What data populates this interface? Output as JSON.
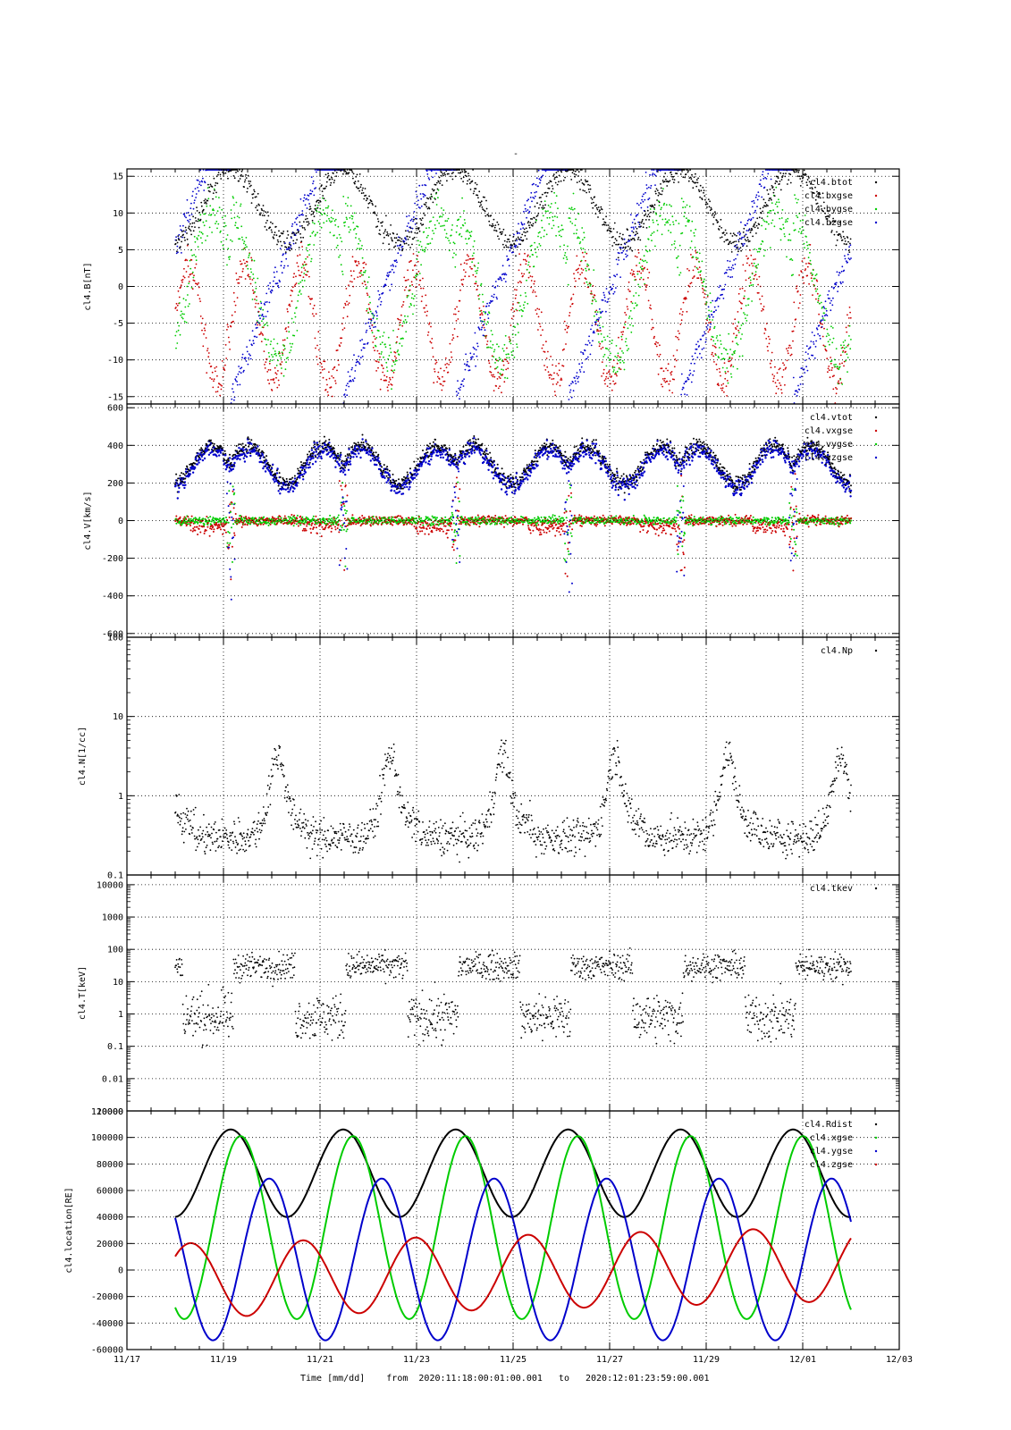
{
  "chart_data": {
    "type": "scatter",
    "title": "-",
    "x_tick_labels": [
      "11/17",
      "11/19",
      "11/21",
      "11/23",
      "11/25",
      "11/27",
      "11/29",
      "12/01",
      "12/03"
    ],
    "x_ticks_days": [
      -1,
      1,
      3,
      5,
      7,
      9,
      11,
      13,
      15
    ],
    "x_range_days": [
      -1,
      15
    ],
    "footer": {
      "xlabel": "Time [mm/dd]",
      "from_label": "from",
      "from": "2020:11:18:00:01:00.001",
      "to_label": "to",
      "to": "2020:12:01:23:59:00.001"
    },
    "colors": {
      "black": "#000000",
      "red": "#cc0000",
      "green": "#00cc00",
      "blue": "#0000cc"
    },
    "panels": [
      {
        "id": "B",
        "ylabel": "cl4.B[nT]",
        "scale": "linear",
        "ylim": [
          -16,
          16
        ],
        "yticks": [
          15,
          10,
          5,
          0,
          -5,
          -10,
          -15
        ],
        "ytick_labels": [
          "15",
          "10",
          "5",
          "0",
          "-5",
          "-10",
          "-15"
        ],
        "series": [
          {
            "name": "cl4.btot",
            "color": "#000000"
          },
          {
            "name": "cl4.bxgse",
            "color": "#cc0000"
          },
          {
            "name": "cl4.bygse",
            "color": "#00cc00"
          },
          {
            "name": "cl4.bzgse",
            "color": "#0000cc"
          }
        ]
      },
      {
        "id": "V",
        "ylabel": "cl4.V[km/s]",
        "scale": "linear",
        "ylim": [
          -620,
          620
        ],
        "yticks": [
          600,
          400,
          200,
          0,
          -200,
          -400,
          -600
        ],
        "ytick_labels": [
          "600",
          "400",
          "200",
          "0",
          "-200",
          "-400",
          "-600"
        ],
        "series": [
          {
            "name": "cl4.vtot",
            "color": "#000000"
          },
          {
            "name": "cl4.vxgse",
            "color": "#cc0000"
          },
          {
            "name": "cl4.vygse",
            "color": "#00cc00"
          },
          {
            "name": "cl4.vzgse",
            "color": "#0000cc"
          }
        ]
      },
      {
        "id": "N",
        "ylabel": "cl4.N[1/cc]",
        "scale": "log",
        "ylim": [
          0.1,
          100
        ],
        "yticks": [
          100,
          10,
          1,
          0.1
        ],
        "ytick_labels": [
          "100",
          "10",
          "1",
          "0.1"
        ],
        "series": [
          {
            "name": "cl4.Np",
            "color": "#000000"
          }
        ]
      },
      {
        "id": "T",
        "ylabel": "cl4.T[keV]",
        "scale": "log",
        "ylim": [
          0.001,
          20000
        ],
        "yticks": [
          10000,
          1000,
          100,
          10,
          1,
          0.1,
          0.01
        ],
        "ytick_labels": [
          "10000",
          "1000",
          "100",
          "10",
          "1",
          "0.1",
          "0.01"
        ],
        "bottom_labels": [
          "10000",
          "120000"
        ],
        "series": [
          {
            "name": "cl4.tkev",
            "color": "#000000"
          }
        ]
      },
      {
        "id": "L",
        "ylabel": "cl4.location[RE]",
        "scale": "linear",
        "ylim": [
          -60000,
          120000
        ],
        "yticks": [
          100000,
          80000,
          60000,
          40000,
          20000,
          0,
          -20000,
          -40000,
          -60000
        ],
        "ytick_labels": [
          "100000",
          "80000",
          "60000",
          "40000",
          "20000",
          "0",
          "-20000",
          "-40000",
          "-60000"
        ],
        "series": [
          {
            "name": "cl4.Rdist",
            "color": "#000000"
          },
          {
            "name": "cl4.xgse",
            "color": "#00cc00"
          },
          {
            "name": "cl4.ygse",
            "color": "#0000cc"
          },
          {
            "name": "cl4.zgse",
            "color": "#cc0000"
          }
        ]
      }
    ]
  }
}
